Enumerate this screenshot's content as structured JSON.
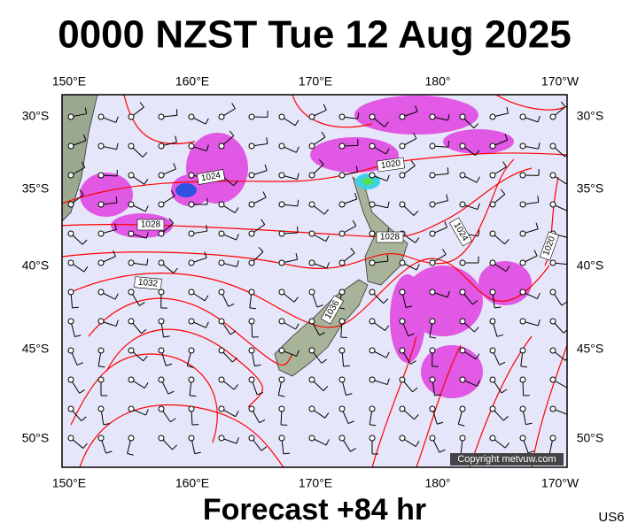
{
  "header": {
    "title": "0000 NZST Tue 12 Aug 2025"
  },
  "map": {
    "lon_labels": [
      "150°E",
      "160°E",
      "170°E",
      "180°",
      "170°W"
    ],
    "lat_labels": [
      "30°S",
      "35°S",
      "40°S",
      "45°S",
      "50°S"
    ],
    "isobar_labels": [
      "1024",
      "1020",
      "1028",
      "1032",
      "1036",
      "1028",
      "1024",
      "1020"
    ],
    "copyright": "Copyright metvuw.com"
  },
  "footer": {
    "forecast": "Forecast +84 hr",
    "code": "US6"
  }
}
